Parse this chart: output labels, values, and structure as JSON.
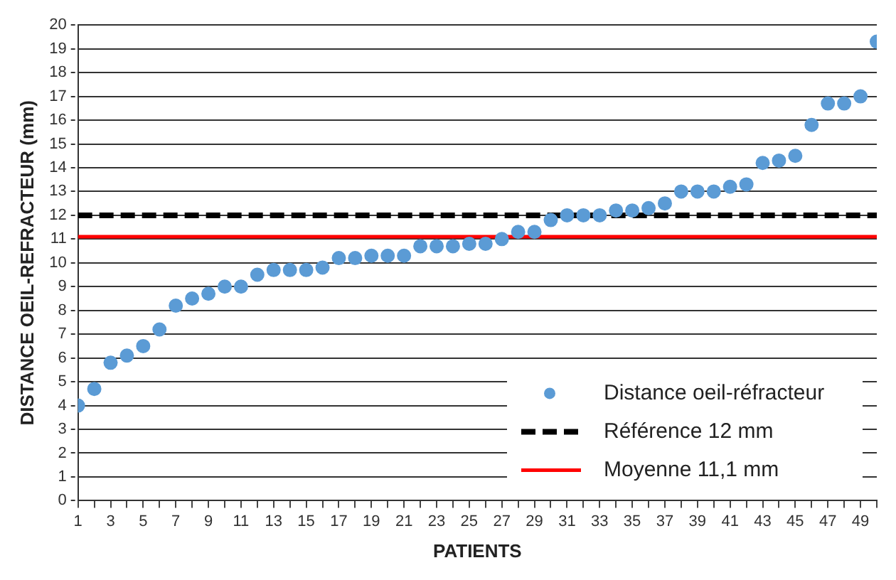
{
  "chart_data": {
    "type": "scatter",
    "xlabel": "PATIENTS",
    "ylabel": "DISTANCE OEIL-REFRACTEUR (mm)",
    "x": [
      1,
      2,
      3,
      4,
      5,
      6,
      7,
      8,
      9,
      10,
      11,
      12,
      13,
      14,
      15,
      16,
      17,
      18,
      19,
      20,
      21,
      22,
      23,
      24,
      25,
      26,
      27,
      28,
      29,
      30,
      31,
      32,
      33,
      34,
      35,
      36,
      37,
      38,
      39,
      40,
      41,
      42,
      43,
      44,
      45,
      46,
      47,
      48,
      49,
      50
    ],
    "series": [
      {
        "name": "Distance oeil-réfracteur",
        "color": "#5b9bd5",
        "values": [
          4.0,
          4.7,
          5.8,
          6.1,
          6.5,
          7.2,
          8.2,
          8.5,
          8.7,
          9.0,
          9.0,
          9.5,
          9.7,
          9.7,
          9.7,
          9.8,
          10.2,
          10.2,
          10.3,
          10.3,
          10.3,
          10.7,
          10.7,
          10.7,
          10.8,
          10.8,
          11.0,
          11.3,
          11.3,
          11.8,
          12.0,
          12.0,
          12.0,
          12.2,
          12.2,
          12.3,
          12.5,
          13.0,
          13.0,
          13.0,
          13.2,
          13.3,
          14.2,
          14.3,
          14.5,
          15.8,
          16.7,
          16.7,
          17.0,
          19.3
        ]
      }
    ],
    "ref_lines": [
      {
        "axis": "y",
        "value": 12,
        "label": "Référence 12 mm",
        "color": "#000000",
        "line_style": "dashed"
      },
      {
        "axis": "y",
        "value": 11.1,
        "label": "Moyenne 11,1 mm",
        "color": "#ff0000",
        "line_style": "solid"
      }
    ],
    "xlim": [
      1,
      50
    ],
    "xticks": [
      1,
      {
        "value": 2,
        "label": null
      },
      3,
      {
        "value": 4,
        "label": null
      },
      5,
      {
        "value": 6,
        "label": null
      },
      7,
      {
        "value": 8,
        "label": null
      },
      9,
      {
        "value": 10,
        "label": null
      },
      11,
      {
        "value": 12,
        "label": null
      },
      13,
      {
        "value": 14,
        "label": null
      },
      15,
      {
        "value": 16,
        "label": null
      },
      17,
      {
        "value": 18,
        "label": null
      },
      19,
      {
        "value": 20,
        "label": null
      },
      21,
      {
        "value": 22,
        "label": null
      },
      23,
      {
        "value": 24,
        "label": null
      },
      25,
      {
        "value": 26,
        "label": null
      },
      27,
      {
        "value": 28,
        "label": null
      },
      29,
      {
        "value": 30,
        "label": null
      },
      31,
      {
        "value": 32,
        "label": null
      },
      33,
      {
        "value": 34,
        "label": null
      },
      35,
      {
        "value": 36,
        "label": null
      },
      37,
      {
        "value": 38,
        "label": null
      },
      39,
      {
        "value": 40,
        "label": null
      },
      41,
      {
        "value": 42,
        "label": null
      },
      43,
      {
        "value": 44,
        "label": null
      },
      45,
      {
        "value": 46,
        "label": null
      },
      47,
      {
        "value": 48,
        "label": null
      },
      49,
      {
        "value": 50,
        "label": null
      }
    ],
    "ylim": [
      0,
      20
    ],
    "yticks": [
      0,
      1,
      2,
      3,
      4,
      5,
      6,
      7,
      8,
      9,
      10,
      11,
      12,
      13,
      14,
      15,
      16,
      17,
      18,
      19,
      20
    ],
    "grid": "y",
    "legend": "bottom right",
    "marker": "circle"
  }
}
